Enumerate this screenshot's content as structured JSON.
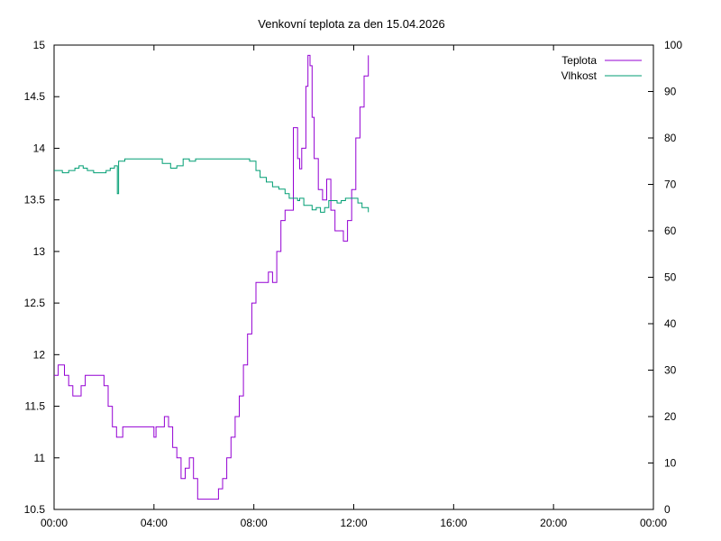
{
  "chart_data": {
    "type": "line",
    "title": "Venkovní teplota za den 15.04.2026",
    "xlabel": "",
    "ylabel": "",
    "y2label": "",
    "xlim": [
      "00:00",
      "24:00"
    ],
    "ylim": [
      10.5,
      15
    ],
    "y2lim": [
      0,
      100
    ],
    "grid": false,
    "legend_position": "top-right",
    "x_ticks": [
      "00:00",
      "04:00",
      "08:00",
      "12:00",
      "16:00",
      "20:00",
      "00:00"
    ],
    "y_ticks": [
      "10.5",
      "11",
      "11.5",
      "12",
      "12.5",
      "13",
      "13.5",
      "14",
      "14.5",
      "15"
    ],
    "y2_ticks": [
      "0",
      "10",
      "20",
      "30",
      "40",
      "50",
      "60",
      "70",
      "80",
      "90",
      "100"
    ],
    "series": [
      {
        "name": "Teplota",
        "axis": "left",
        "color": "#9400d3",
        "x": [
          "00:00",
          "00:10",
          "00:20",
          "00:25",
          "00:35",
          "00:45",
          "00:55",
          "01:05",
          "01:15",
          "01:30",
          "01:45",
          "02:00",
          "02:10",
          "02:20",
          "02:30",
          "02:35",
          "02:45",
          "02:50",
          "03:00",
          "03:15",
          "03:30",
          "03:45",
          "04:00",
          "04:05",
          "04:15",
          "04:25",
          "04:35",
          "04:45",
          "04:55",
          "05:05",
          "05:15",
          "05:25",
          "05:35",
          "05:45",
          "05:55",
          "06:05",
          "06:20",
          "06:35",
          "06:45",
          "06:55",
          "07:05",
          "07:15",
          "07:25",
          "07:35",
          "07:45",
          "07:55",
          "08:05",
          "08:15",
          "08:25",
          "08:35",
          "08:45",
          "08:55",
          "09:05",
          "09:15",
          "09:25",
          "09:35",
          "09:45",
          "09:50",
          "09:55",
          "10:05",
          "10:10",
          "10:15",
          "10:20",
          "10:25",
          "10:35",
          "10:45",
          "10:55",
          "11:05",
          "11:15",
          "11:25",
          "11:35",
          "11:45",
          "11:55",
          "12:05",
          "12:15",
          "12:25",
          "12:35"
        ],
        "values": [
          11.8,
          11.9,
          11.9,
          11.8,
          11.7,
          11.6,
          11.6,
          11.7,
          11.8,
          11.8,
          11.8,
          11.7,
          11.5,
          11.3,
          11.2,
          11.2,
          11.3,
          11.3,
          11.3,
          11.3,
          11.3,
          11.3,
          11.2,
          11.3,
          11.3,
          11.4,
          11.3,
          11.1,
          11.0,
          10.8,
          10.9,
          11.0,
          10.8,
          10.6,
          10.6,
          10.6,
          10.6,
          10.7,
          10.8,
          11.0,
          11.2,
          11.4,
          11.6,
          11.9,
          12.2,
          12.5,
          12.7,
          12.7,
          12.7,
          12.8,
          12.7,
          13.0,
          13.3,
          13.4,
          13.4,
          14.2,
          13.9,
          13.8,
          14.0,
          14.6,
          14.9,
          14.8,
          14.3,
          13.9,
          13.6,
          13.5,
          13.7,
          13.4,
          13.2,
          13.2,
          13.1,
          13.3,
          13.6,
          14.1,
          14.4,
          14.7,
          14.9
        ]
      },
      {
        "name": "Vlhkost",
        "axis": "right",
        "color": "#009e73",
        "x": [
          "00:00",
          "00:10",
          "00:20",
          "00:35",
          "00:50",
          "01:00",
          "01:10",
          "01:20",
          "01:35",
          "01:50",
          "02:05",
          "02:15",
          "02:25",
          "02:30",
          "02:32",
          "02:35",
          "02:40",
          "02:50",
          "03:05",
          "03:20",
          "03:40",
          "04:00",
          "04:20",
          "04:40",
          "04:55",
          "05:10",
          "05:25",
          "05:40",
          "05:55",
          "06:10",
          "06:30",
          "06:50",
          "07:05",
          "07:20",
          "07:35",
          "07:50",
          "08:05",
          "08:15",
          "08:30",
          "08:45",
          "09:00",
          "09:15",
          "09:25",
          "09:35",
          "09:45",
          "09:50",
          "10:00",
          "10:10",
          "10:20",
          "10:30",
          "10:40",
          "10:50",
          "11:00",
          "11:10",
          "11:20",
          "11:30",
          "11:40",
          "11:50",
          "12:00",
          "12:10",
          "12:20",
          "12:35"
        ],
        "values": [
          73,
          73,
          72.5,
          73,
          73.5,
          74,
          73.5,
          73,
          72.5,
          72.5,
          73,
          73.5,
          74,
          74,
          68,
          75,
          75,
          75.5,
          75.5,
          75.5,
          75.5,
          75.5,
          74.5,
          73.5,
          74,
          75.5,
          75,
          75.5,
          75.5,
          75.5,
          75.5,
          75.5,
          75.5,
          75.5,
          75.5,
          75,
          73,
          71.5,
          70.5,
          69.5,
          69,
          68,
          67,
          67,
          66.5,
          67,
          65.5,
          65.5,
          64.5,
          65,
          64,
          65,
          66.5,
          66.5,
          66,
          66.5,
          67,
          67,
          67,
          66,
          65,
          64
        ]
      }
    ]
  }
}
